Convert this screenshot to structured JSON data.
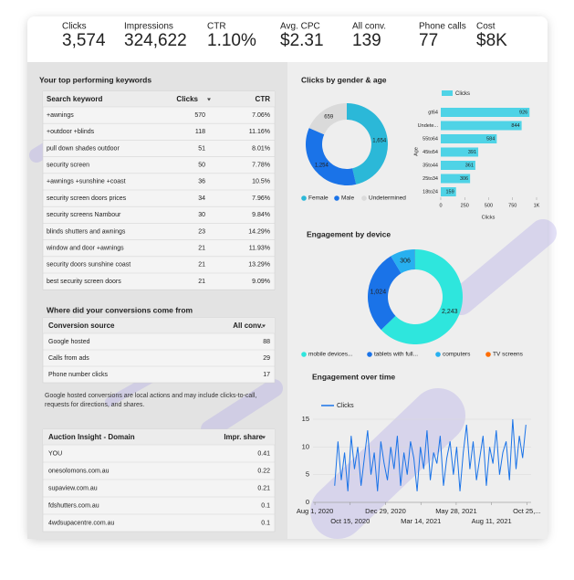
{
  "kpis": [
    {
      "label": "Clicks",
      "value": "3,574"
    },
    {
      "label": "Impressions",
      "value": "324,622"
    },
    {
      "label": "CTR",
      "value": "1.10%"
    },
    {
      "label": "Avg. CPC",
      "value": "$2.31"
    },
    {
      "label": "All conv.",
      "value": "139"
    },
    {
      "label": "Phone calls",
      "value": "77"
    },
    {
      "label": "Cost",
      "value": "$8K"
    }
  ],
  "keywords": {
    "title": "Your top performing keywords",
    "columns": [
      "Search keyword",
      "Clicks",
      "CTR"
    ],
    "rows": [
      [
        "+awnings",
        "570",
        "7.06%"
      ],
      [
        "+outdoor +blinds",
        "118",
        "11.16%"
      ],
      [
        "pull down shades outdoor",
        "51",
        "8.01%"
      ],
      [
        "security screen",
        "50",
        "7.78%"
      ],
      [
        "+awnings +sunshine +coast",
        "36",
        "10.5%"
      ],
      [
        "security screen doors prices",
        "34",
        "7.96%"
      ],
      [
        "security screens Nambour",
        "30",
        "9.84%"
      ],
      [
        "blinds shutters and awnings",
        "23",
        "14.29%"
      ],
      [
        "window and door +awnings",
        "21",
        "11.93%"
      ],
      [
        "security doors sunshine coast",
        "21",
        "13.29%"
      ],
      [
        "best security screen doors",
        "21",
        "9.09%"
      ]
    ]
  },
  "conversions": {
    "title": "Where did your conversions come from",
    "columns": [
      "Conversion source",
      "All conv."
    ],
    "rows": [
      [
        "Google hosted",
        "88"
      ],
      [
        "Calls from ads",
        "29"
      ],
      [
        "Phone number clicks",
        "17"
      ]
    ],
    "note": "Google hosted conversions are local actions and may include clicks-to-call, requests for directions, and shares."
  },
  "auction": {
    "columns": [
      "Auction Insight - Domain",
      "Impr. share"
    ],
    "rows": [
      [
        "YOU",
        "0.41"
      ],
      [
        "onesolomons.com.au",
        "0.22"
      ],
      [
        "supaview.com.au",
        "0.21"
      ],
      [
        "fdshutters.com.au",
        "0.1"
      ],
      [
        "4wdsupacentre.com.au",
        "0.1"
      ]
    ]
  },
  "chart_data": [
    {
      "type": "pie",
      "title": "Clicks by gender & age",
      "categories": [
        "Female",
        "Male",
        "Undetermined"
      ],
      "values": [
        1654,
        1254,
        659
      ],
      "value_labels": [
        "1,654",
        "1,254",
        "659"
      ],
      "colors": [
        "#2bb8d8",
        "#1a73e8",
        "#dadada"
      ],
      "legend": "bottom"
    },
    {
      "type": "hbar",
      "categories": [
        "gt64",
        "Undete...",
        "55to64",
        "45to54",
        "35to44",
        "25to34",
        "18to24"
      ],
      "series": [
        {
          "name": "Clicks",
          "color": "#4fd3e6",
          "values": [
            926,
            844,
            584,
            391,
            361,
            306,
            159
          ]
        }
      ],
      "xlim": [
        0,
        1000
      ],
      "xticks": [
        0,
        250,
        500,
        750,
        {
          "value": 1000,
          "label": "1K"
        }
      ],
      "xlabel": "Clicks",
      "ylabel": "Age",
      "legend": "top"
    },
    {
      "type": "pie",
      "title": "Engagement by device",
      "categories": [
        "mobile devices...",
        "tablets with full...",
        "computers",
        "TV screens"
      ],
      "values": [
        2243,
        1024,
        306,
        1
      ],
      "value_labels": [
        "2,243",
        "1,024",
        "306",
        null
      ],
      "colors": [
        "#2ee6dd",
        "#1a73e8",
        "#27b0f0",
        "#ff6d00"
      ],
      "legend": "bottom"
    },
    {
      "type": "line",
      "title": "Engagement over time",
      "x": [
        "2020-09-12",
        "2020-09-19",
        "2020-09-26",
        "2020-10-03",
        "2020-10-10",
        "2020-10-17",
        "2020-10-24",
        "2020-10-31",
        "2020-11-07",
        "2020-11-14",
        "2020-11-21",
        "2020-11-28",
        "2020-12-05",
        "2020-12-12",
        "2020-12-19",
        "2020-12-26",
        "2021-01-02",
        "2021-01-09",
        "2021-01-16",
        "2021-01-23",
        "2021-01-30",
        "2021-02-06",
        "2021-02-13",
        "2021-02-20",
        "2021-02-27",
        "2021-03-06",
        "2021-03-13",
        "2021-03-20",
        "2021-03-27",
        "2021-04-03",
        "2021-04-10",
        "2021-04-17",
        "2021-04-24",
        "2021-05-01",
        "2021-05-08",
        "2021-05-15",
        "2021-05-22",
        "2021-05-29",
        "2021-06-05",
        "2021-06-12",
        "2021-06-19",
        "2021-06-26",
        "2021-07-03",
        "2021-07-10",
        "2021-07-17",
        "2021-07-24",
        "2021-07-31",
        "2021-08-07",
        "2021-08-14",
        "2021-08-21",
        "2021-08-28",
        "2021-09-04",
        "2021-09-11",
        "2021-09-18",
        "2021-09-25",
        "2021-10-02",
        "2021-10-09",
        "2021-10-16",
        "2021-10-23"
      ],
      "series": [
        {
          "name": "Clicks",
          "color": "#1a73e8",
          "values": [
            3,
            11,
            4,
            9,
            2,
            12,
            6,
            10,
            3,
            8,
            13,
            5,
            9,
            2,
            11,
            7,
            4,
            10,
            6,
            12,
            3,
            9,
            5,
            11,
            8,
            2,
            10,
            6,
            13,
            4,
            9,
            7,
            12,
            3,
            8,
            11,
            5,
            10,
            2,
            9,
            14,
            6,
            11,
            4,
            8,
            12,
            3,
            10,
            7,
            13,
            5,
            9,
            11,
            4,
            15,
            6,
            12,
            8,
            14
          ]
        }
      ],
      "xlim": [
        "2020-07-28",
        "2021-11-03"
      ],
      "xticks": [
        {
          "value": "2020-08-01",
          "label": "Aug 1, 2020"
        },
        {
          "value": "2020-10-15",
          "label": "Oct 15, 2020"
        },
        {
          "value": "2020-12-29",
          "label": "Dec 29, 2020"
        },
        {
          "value": "2021-03-14",
          "label": "Mar 14, 2021"
        },
        {
          "value": "2021-05-28",
          "label": "May 28, 2021"
        },
        {
          "value": "2021-08-11",
          "label": "Aug 11, 2021"
        },
        {
          "value": "2021-10-25",
          "label": "Oct 25,..."
        }
      ],
      "ylim": [
        0,
        15
      ],
      "yticks": [
        0,
        5,
        10,
        15
      ],
      "grid": true,
      "legend": "top"
    }
  ]
}
